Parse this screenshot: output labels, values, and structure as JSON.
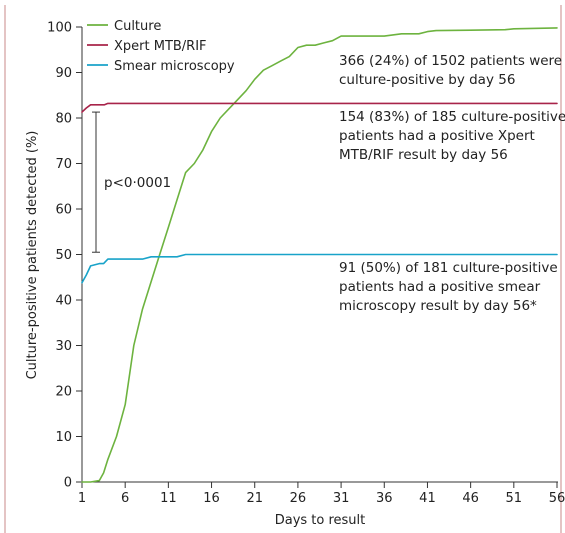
{
  "colors": {
    "culture": "#6db33f",
    "xpert": "#a8244a",
    "smear": "#19a3c9",
    "axis": "#333333",
    "border": "#c98a8a"
  },
  "chart_data": {
    "type": "line",
    "xlabel": "Days to result",
    "ylabel": "Culture-positive patients detected (%)",
    "xlim": [
      1,
      56
    ],
    "ylim": [
      0,
      100
    ],
    "xticks": [
      "1",
      "6",
      "11",
      "16",
      "21",
      "26",
      "31",
      "36",
      "41",
      "46",
      "51",
      "56"
    ],
    "yticks": [
      "0",
      "10",
      "20",
      "30",
      "40",
      "50",
      "60",
      "70",
      "80",
      "90",
      "100"
    ],
    "legend": {
      "position": "top-left",
      "entries": [
        "Culture",
        "Xpert MTB/RIF",
        "Smear microscopy"
      ]
    },
    "series": [
      {
        "name": "Culture",
        "key": "culture",
        "x": [
          1,
          2,
          3,
          3.5,
          4,
          5,
          6,
          7,
          8,
          9,
          10,
          11,
          12,
          13,
          14,
          15,
          16,
          17,
          18,
          19,
          20,
          21,
          22,
          23,
          24,
          25,
          26,
          27,
          28,
          29,
          30,
          31,
          33,
          36,
          38,
          40,
          41,
          42,
          46,
          50,
          51,
          56
        ],
        "y": [
          0,
          0,
          0.3,
          2,
          5,
          10,
          17,
          30,
          38,
          44,
          50,
          56,
          62,
          68,
          70,
          73,
          77,
          80,
          82,
          84,
          86,
          88.5,
          90.5,
          91.5,
          92.5,
          93.5,
          95.5,
          96,
          96,
          96.5,
          97,
          98,
          98,
          98,
          98.5,
          98.5,
          99,
          99.2,
          99.3,
          99.4,
          99.6,
          99.8
        ]
      },
      {
        "name": "Xpert MTB/RIF",
        "key": "xpert",
        "x": [
          1,
          1.5,
          2,
          3,
          3.6,
          4,
          5,
          56
        ],
        "y": [
          81.3,
          82.2,
          82.9,
          82.9,
          82.9,
          83.2,
          83.2,
          83.2
        ]
      },
      {
        "name": "Smear microscopy",
        "key": "smear",
        "x": [
          1,
          1.5,
          2,
          3,
          3.5,
          4,
          5,
          8,
          9,
          12,
          13,
          56
        ],
        "y": [
          43.8,
          45.5,
          47.5,
          48,
          48,
          49,
          49,
          49,
          49.5,
          49.5,
          50,
          50
        ]
      }
    ],
    "annotations": [
      {
        "key": "culture_note",
        "lines": [
          "366 (24%) of 1502 patients were",
          "culture-positive by day 56"
        ]
      },
      {
        "key": "xpert_note",
        "lines": [
          "154 (83%) of 185 culture-positive",
          "patients had a positive Xpert",
          "MTB/RIF result by day 56"
        ]
      },
      {
        "key": "smear_note",
        "lines": [
          "91 (50%) of 181 culture-positive",
          "patients had a positive smear",
          "microscopy result by day 56*"
        ]
      }
    ],
    "comparison": {
      "label": "p<0·0001",
      "from": 50.5,
      "to": 81.3,
      "x": 4
    }
  }
}
